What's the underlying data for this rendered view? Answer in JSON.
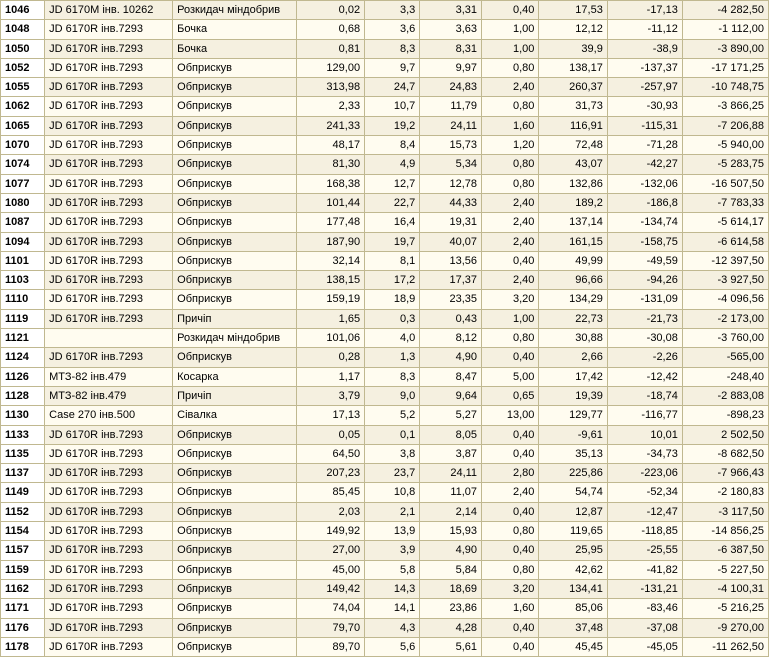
{
  "columns": [
    "id",
    "vehicle",
    "impl",
    "v3",
    "v4",
    "v5",
    "v6",
    "v7",
    "v8",
    "v9"
  ],
  "col_classes": [
    "c0",
    "c1",
    "c2",
    "c3",
    "c4",
    "c5",
    "c6",
    "c7",
    "c8",
    "c9"
  ],
  "rows": [
    {
      "id": "1046",
      "vehicle": "JD 6170M інв. 10262",
      "impl": "Розкидач міндобрив",
      "v3": "0,02",
      "v4": "3,3",
      "v5": "3,31",
      "v6": "0,40",
      "v7": "17,53",
      "v8": "-17,13",
      "v9": "-4 282,50"
    },
    {
      "id": "1048",
      "vehicle": "JD 6170R інв.7293",
      "impl": "Бочка",
      "v3": "0,68",
      "v4": "3,6",
      "v5": "3,63",
      "v6": "1,00",
      "v7": "12,12",
      "v8": "-11,12",
      "v9": "-1 112,00"
    },
    {
      "id": "1050",
      "vehicle": "JD 6170R інв.7293",
      "impl": "Бочка",
      "v3": "0,81",
      "v4": "8,3",
      "v5": "8,31",
      "v6": "1,00",
      "v7": "39,9",
      "v8": "-38,9",
      "v9": "-3 890,00"
    },
    {
      "id": "1052",
      "vehicle": "JD 6170R інв.7293",
      "impl": "Обприскув",
      "v3": "129,00",
      "v4": "9,7",
      "v5": "9,97",
      "v6": "0,80",
      "v7": "138,17",
      "v8": "-137,37",
      "v9": "-17 171,25"
    },
    {
      "id": "1055",
      "vehicle": "JD 6170R інв.7293",
      "impl": "Обприскув",
      "v3": "313,98",
      "v4": "24,7",
      "v5": "24,83",
      "v6": "2,40",
      "v7": "260,37",
      "v8": "-257,97",
      "v9": "-10 748,75"
    },
    {
      "id": "1062",
      "vehicle": "JD 6170R інв.7293",
      "impl": "Обприскув",
      "v3": "2,33",
      "v4": "10,7",
      "v5": "11,79",
      "v6": "0,80",
      "v7": "31,73",
      "v8": "-30,93",
      "v9": "-3 866,25"
    },
    {
      "id": "1065",
      "vehicle": "JD 6170R інв.7293",
      "impl": "Обприскув",
      "v3": "241,33",
      "v4": "19,2",
      "v5": "24,11",
      "v6": "1,60",
      "v7": "116,91",
      "v8": "-115,31",
      "v9": "-7 206,88"
    },
    {
      "id": "1070",
      "vehicle": "JD 6170R інв.7293",
      "impl": "Обприскув",
      "v3": "48,17",
      "v4": "8,4",
      "v5": "15,73",
      "v6": "1,20",
      "v7": "72,48",
      "v8": "-71,28",
      "v9": "-5 940,00"
    },
    {
      "id": "1074",
      "vehicle": "JD 6170R інв.7293",
      "impl": "Обприскув",
      "v3": "81,30",
      "v4": "4,9",
      "v5": "5,34",
      "v6": "0,80",
      "v7": "43,07",
      "v8": "-42,27",
      "v9": "-5 283,75"
    },
    {
      "id": "1077",
      "vehicle": "JD 6170R інв.7293",
      "impl": "Обприскув",
      "v3": "168,38",
      "v4": "12,7",
      "v5": "12,78",
      "v6": "0,80",
      "v7": "132,86",
      "v8": "-132,06",
      "v9": "-16 507,50"
    },
    {
      "id": "1080",
      "vehicle": "JD 6170R інв.7293",
      "impl": "Обприскув",
      "v3": "101,44",
      "v4": "22,7",
      "v5": "44,33",
      "v6": "2,40",
      "v7": "189,2",
      "v8": "-186,8",
      "v9": "-7 783,33"
    },
    {
      "id": "1087",
      "vehicle": "JD 6170R інв.7293",
      "impl": "Обприскув",
      "v3": "177,48",
      "v4": "16,4",
      "v5": "19,31",
      "v6": "2,40",
      "v7": "137,14",
      "v8": "-134,74",
      "v9": "-5 614,17"
    },
    {
      "id": "1094",
      "vehicle": "JD 6170R інв.7293",
      "impl": "Обприскув",
      "v3": "187,90",
      "v4": "19,7",
      "v5": "40,07",
      "v6": "2,40",
      "v7": "161,15",
      "v8": "-158,75",
      "v9": "-6 614,58"
    },
    {
      "id": "1101",
      "vehicle": "JD 6170R інв.7293",
      "impl": "Обприскув",
      "v3": "32,14",
      "v4": "8,1",
      "v5": "13,56",
      "v6": "0,40",
      "v7": "49,99",
      "v8": "-49,59",
      "v9": "-12 397,50"
    },
    {
      "id": "1103",
      "vehicle": "JD 6170R інв.7293",
      "impl": "Обприскув",
      "v3": "138,15",
      "v4": "17,2",
      "v5": "17,37",
      "v6": "2,40",
      "v7": "96,66",
      "v8": "-94,26",
      "v9": "-3 927,50"
    },
    {
      "id": "1110",
      "vehicle": "JD 6170R інв.7293",
      "impl": "Обприскув",
      "v3": "159,19",
      "v4": "18,9",
      "v5": "23,35",
      "v6": "3,20",
      "v7": "134,29",
      "v8": "-131,09",
      "v9": "-4 096,56"
    },
    {
      "id": "1119",
      "vehicle": "JD 6170R інв.7293",
      "impl": "Причіп",
      "v3": "1,65",
      "v4": "0,3",
      "v5": "0,43",
      "v6": "1,00",
      "v7": "22,73",
      "v8": "-21,73",
      "v9": "-2 173,00"
    },
    {
      "id": "1121",
      "vehicle": "",
      "impl": "Розкидач міндобрив",
      "v3": "101,06",
      "v4": "4,0",
      "v5": "8,12",
      "v6": "0,80",
      "v7": "30,88",
      "v8": "-30,08",
      "v9": "-3 760,00"
    },
    {
      "id": "1124",
      "vehicle": "JD 6170R інв.7293",
      "impl": "Обприскув",
      "v3": "0,28",
      "v4": "1,3",
      "v5": "4,90",
      "v6": "0,40",
      "v7": "2,66",
      "v8": "-2,26",
      "v9": "-565,00"
    },
    {
      "id": "1126",
      "vehicle": "МТЗ-82 інв.479",
      "impl": "Косарка",
      "v3": "1,17",
      "v4": "8,3",
      "v5": "8,47",
      "v6": "5,00",
      "v7": "17,42",
      "v8": "-12,42",
      "v9": "-248,40"
    },
    {
      "id": "1128",
      "vehicle": "МТЗ-82 інв.479",
      "impl": "Причіп",
      "v3": "3,79",
      "v4": "9,0",
      "v5": "9,64",
      "v6": "0,65",
      "v7": "19,39",
      "v8": "-18,74",
      "v9": "-2 883,08"
    },
    {
      "id": "1130",
      "vehicle": "Case 270 інв.500",
      "impl": "Сівалка",
      "v3": "17,13",
      "v4": "5,2",
      "v5": "5,27",
      "v6": "13,00",
      "v7": "129,77",
      "v8": "-116,77",
      "v9": "-898,23"
    },
    {
      "id": "1133",
      "vehicle": "JD 6170R інв.7293",
      "impl": "Обприскув",
      "v3": "0,05",
      "v4": "0,1",
      "v5": "8,05",
      "v6": "0,40",
      "v7": "-9,61",
      "v8": "10,01",
      "v9": "2 502,50"
    },
    {
      "id": "1135",
      "vehicle": "JD 6170R інв.7293",
      "impl": "Обприскув",
      "v3": "64,50",
      "v4": "3,8",
      "v5": "3,87",
      "v6": "0,40",
      "v7": "35,13",
      "v8": "-34,73",
      "v9": "-8 682,50"
    },
    {
      "id": "1137",
      "vehicle": "JD 6170R інв.7293",
      "impl": "Обприскув",
      "v3": "207,23",
      "v4": "23,7",
      "v5": "24,11",
      "v6": "2,80",
      "v7": "225,86",
      "v8": "-223,06",
      "v9": "-7 966,43"
    },
    {
      "id": "1149",
      "vehicle": "JD 6170R інв.7293",
      "impl": "Обприскув",
      "v3": "85,45",
      "v4": "10,8",
      "v5": "11,07",
      "v6": "2,40",
      "v7": "54,74",
      "v8": "-52,34",
      "v9": "-2 180,83"
    },
    {
      "id": "1152",
      "vehicle": "JD 6170R інв.7293",
      "impl": "Обприскув",
      "v3": "2,03",
      "v4": "2,1",
      "v5": "2,14",
      "v6": "0,40",
      "v7": "12,87",
      "v8": "-12,47",
      "v9": "-3 117,50"
    },
    {
      "id": "1154",
      "vehicle": "JD 6170R інв.7293",
      "impl": "Обприскув",
      "v3": "149,92",
      "v4": "13,9",
      "v5": "15,93",
      "v6": "0,80",
      "v7": "119,65",
      "v8": "-118,85",
      "v9": "-14 856,25"
    },
    {
      "id": "1157",
      "vehicle": "JD 6170R інв.7293",
      "impl": "Обприскув",
      "v3": "27,00",
      "v4": "3,9",
      "v5": "4,90",
      "v6": "0,40",
      "v7": "25,95",
      "v8": "-25,55",
      "v9": "-6 387,50"
    },
    {
      "id": "1159",
      "vehicle": "JD 6170R інв.7293",
      "impl": "Обприскув",
      "v3": "45,00",
      "v4": "5,8",
      "v5": "5,84",
      "v6": "0,80",
      "v7": "42,62",
      "v8": "-41,82",
      "v9": "-5 227,50"
    },
    {
      "id": "1162",
      "vehicle": "JD 6170R інв.7293",
      "impl": "Обприскув",
      "v3": "149,42",
      "v4": "14,3",
      "v5": "18,69",
      "v6": "3,20",
      "v7": "134,41",
      "v8": "-131,21",
      "v9": "-4 100,31"
    },
    {
      "id": "1171",
      "vehicle": "JD 6170R інв.7293",
      "impl": "Обприскув",
      "v3": "74,04",
      "v4": "14,1",
      "v5": "23,86",
      "v6": "1,60",
      "v7": "85,06",
      "v8": "-83,46",
      "v9": "-5 216,25"
    },
    {
      "id": "1176",
      "vehicle": "JD 6170R інв.7293",
      "impl": "Обприскув",
      "v3": "79,70",
      "v4": "4,3",
      "v5": "4,28",
      "v6": "0,40",
      "v7": "37,48",
      "v8": "-37,08",
      "v9": "-9 270,00"
    },
    {
      "id": "1178",
      "vehicle": "JD 6170R інв.7293",
      "impl": "Обприскув",
      "v3": "89,70",
      "v4": "5,6",
      "v5": "5,61",
      "v6": "0,40",
      "v7": "45,45",
      "v8": "-45,05",
      "v9": "-11 262,50"
    }
  ]
}
